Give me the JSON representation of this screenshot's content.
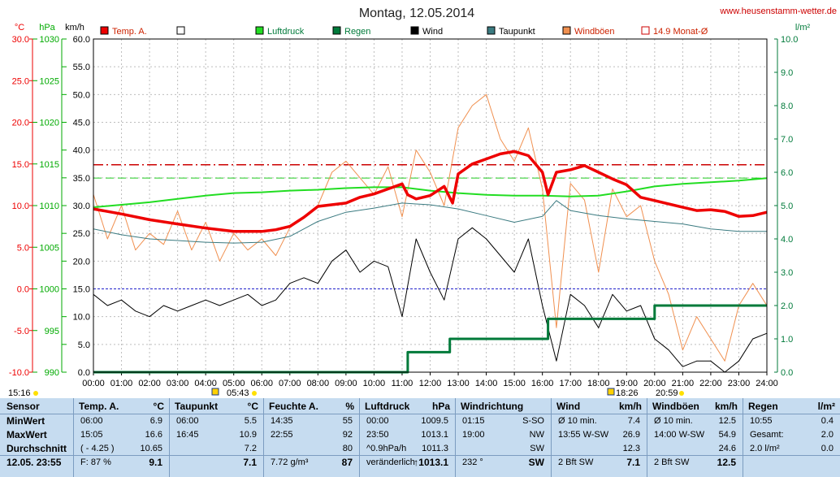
{
  "title": "Montag, 12.05.2014",
  "website": "www.heusenstamm-wetter.de",
  "axis_units": {
    "temp": "°C",
    "press": "hPa",
    "wind": "km/h",
    "rain": "l/m²"
  },
  "colors": {
    "temp": "#ee0000",
    "press": "#22dd22",
    "rain": "#007a3a",
    "wind": "#000000",
    "dew": "#3a7a80",
    "gust": "#f09050",
    "avg": "#cc0000"
  },
  "legend": [
    {
      "label": "Temp. A.",
      "color": "#ee0000"
    },
    {
      "label": "",
      "color": "#ffffff"
    },
    {
      "label": "Luftdruck",
      "color": "#22dd22"
    },
    {
      "label": "Regen",
      "color": "#007a3a"
    },
    {
      "label": "Wind",
      "color": "#000000"
    },
    {
      "label": "Taupunkt",
      "color": "#3a7a80"
    },
    {
      "label": "Windböen",
      "color": "#f09050"
    },
    {
      "label": "14.9 Monat-Ø",
      "color": "#cc0000"
    }
  ],
  "sun": {
    "left_time": "15:16",
    "sunrise": "05:43",
    "sunset": "20:59",
    "moon": "18:26"
  },
  "chart_data": {
    "type": "line",
    "title": "Montag, 12.05.2014",
    "x_ticks": [
      "00:00",
      "01:00",
      "02:00",
      "03:00",
      "04:00",
      "05:00",
      "06:00",
      "07:00",
      "08:00",
      "09:00",
      "10:00",
      "11:00",
      "12:00",
      "13:00",
      "14:00",
      "15:00",
      "16:00",
      "17:00",
      "18:00",
      "19:00",
      "20:00",
      "21:00",
      "22:00",
      "23:00",
      "24:00"
    ],
    "y_axes": {
      "temp_c": {
        "range": [
          -10,
          30
        ],
        "ticks": [
          "-10.0",
          "-5.0",
          "0.0",
          "5.0",
          "10.0",
          "15.0",
          "20.0",
          "25.0",
          "30.0"
        ]
      },
      "pressure_hpa": {
        "range": [
          990,
          1030
        ],
        "ticks": [
          "990",
          "995",
          "1000",
          "1005",
          "1010",
          "1015",
          "1020",
          "1025",
          "1030"
        ]
      },
      "wind_kmh": {
        "range": [
          0,
          60
        ],
        "ticks": [
          "0.0",
          "5.0",
          "10.0",
          "15.0",
          "20.0",
          "25.0",
          "30.0",
          "35.0",
          "40.0",
          "45.0",
          "50.0",
          "55.0",
          "60.0"
        ]
      },
      "rain_lm2": {
        "range": [
          0,
          10
        ],
        "ticks": [
          "0.0",
          "1.0",
          "2.0",
          "3.0",
          "4.0",
          "5.0",
          "6.0",
          "7.0",
          "8.0",
          "9.0",
          "10.0"
        ]
      }
    },
    "reference_lines": {
      "temp_month_avg": 14.9,
      "pressure_ref": 1013.3,
      "temp_zero": 0
    },
    "series": [
      {
        "name": "Temp. A.",
        "axis": "temp_c",
        "x_hours": [
          0,
          1,
          2,
          3,
          4,
          5,
          6,
          6.5,
          7,
          7.5,
          8,
          9,
          9.5,
          10,
          10.5,
          11,
          11.2,
          11.5,
          12,
          12.5,
          12.8,
          13,
          13.5,
          14,
          14.5,
          15,
          15.5,
          16,
          16.2,
          16.5,
          17,
          17.5,
          18,
          18.5,
          19,
          19.5,
          20,
          21,
          21.5,
          22,
          22.5,
          23,
          23.5,
          24
        ],
        "values": [
          9.6,
          9.0,
          8.3,
          7.8,
          7.3,
          6.9,
          6.9,
          7.1,
          7.5,
          8.6,
          9.9,
          10.3,
          11.0,
          11.4,
          12.0,
          12.6,
          11.3,
          10.8,
          11.2,
          12.3,
          10.3,
          13.8,
          15.0,
          15.6,
          16.2,
          16.5,
          16.0,
          14.0,
          11.3,
          14.0,
          14.3,
          14.8,
          14.0,
          13.2,
          12.5,
          11.0,
          10.6,
          9.8,
          9.4,
          9.5,
          9.3,
          8.7,
          8.8,
          9.2
        ]
      },
      {
        "name": "Luftdruck",
        "axis": "pressure_hpa",
        "x_hours": [
          0,
          1,
          2,
          3,
          4,
          5,
          6,
          7,
          8,
          9,
          10,
          11,
          12,
          13,
          14,
          15,
          16,
          17,
          18,
          19,
          20,
          21,
          22,
          23,
          24
        ],
        "values": [
          1009.8,
          1010.1,
          1010.4,
          1010.8,
          1011.2,
          1011.5,
          1011.6,
          1011.8,
          1011.9,
          1012.1,
          1012.2,
          1012.2,
          1011.8,
          1011.5,
          1011.3,
          1011.2,
          1011.2,
          1011.1,
          1011.2,
          1011.7,
          1012.3,
          1012.6,
          1012.8,
          1013.0,
          1013.3
        ]
      },
      {
        "name": "Taupunkt",
        "axis": "temp_c",
        "x_hours": [
          0,
          1,
          2,
          3,
          4,
          5,
          6,
          7,
          8,
          9,
          10,
          11,
          12,
          13,
          14,
          15,
          16,
          16.5,
          17,
          18,
          19,
          20,
          21,
          22,
          23,
          24
        ],
        "values": [
          7.2,
          6.5,
          6.0,
          5.8,
          5.6,
          5.5,
          5.6,
          6.3,
          8.1,
          9.2,
          9.7,
          10.3,
          10.1,
          9.6,
          8.8,
          8.0,
          8.7,
          10.6,
          9.4,
          8.8,
          8.4,
          8.1,
          7.8,
          7.2,
          6.9,
          6.9
        ]
      },
      {
        "name": "Wind",
        "axis": "wind_kmh",
        "x_hours": [
          0,
          0.5,
          1,
          1.5,
          2,
          2.5,
          3,
          3.5,
          4,
          4.5,
          5,
          5.5,
          6,
          6.5,
          7,
          7.5,
          8,
          8.5,
          9,
          9.5,
          10,
          10.5,
          11,
          11.5,
          12,
          12.5,
          13,
          13.5,
          14,
          14.5,
          15,
          15.5,
          16,
          16.5,
          17,
          17.5,
          18,
          18.5,
          19,
          19.5,
          20,
          20.5,
          21,
          21.5,
          22,
          22.5,
          23,
          23.5,
          24
        ],
        "values": [
          14,
          12,
          13,
          11,
          10,
          12,
          11,
          12,
          13,
          12,
          13,
          14,
          12,
          13,
          16,
          17,
          16,
          20,
          22,
          18,
          20,
          19,
          10,
          24,
          18,
          13,
          24,
          26,
          24,
          21,
          18,
          24,
          12,
          2,
          14,
          12,
          8,
          14,
          11,
          12,
          6,
          4,
          1,
          2,
          2,
          0,
          2,
          6,
          7
        ]
      },
      {
        "name": "Windböen",
        "axis": "wind_kmh",
        "x_hours": [
          0,
          0.5,
          1,
          1.5,
          2,
          2.5,
          3,
          3.5,
          4,
          4.5,
          5,
          5.5,
          6,
          6.5,
          7,
          7.5,
          8,
          8.5,
          9,
          9.5,
          10,
          10.5,
          11,
          11.5,
          12,
          12.5,
          13,
          13.5,
          14,
          14.5,
          15,
          15.5,
          16,
          16.5,
          17,
          17.5,
          18,
          18.5,
          19,
          19.5,
          20,
          20.5,
          21,
          21.5,
          22,
          22.5,
          23,
          23.5,
          24
        ],
        "values": [
          32,
          24,
          30,
          22,
          25,
          23,
          29,
          22,
          27,
          20,
          25,
          22,
          24,
          21,
          26,
          28,
          30,
          36,
          38,
          35,
          32,
          37,
          28,
          40,
          36,
          30,
          44,
          48,
          50,
          42,
          38,
          44,
          33,
          8,
          34,
          31,
          18,
          33,
          28,
          30,
          20,
          14,
          4,
          10,
          6,
          2,
          12,
          16,
          12
        ]
      },
      {
        "name": "Regen",
        "axis": "rain_lm2",
        "x_hours": [
          0,
          11,
          11.2,
          12.5,
          12.7,
          16.0,
          16.2,
          19.8,
          20.0,
          24
        ],
        "values": [
          0,
          0,
          0.6,
          0.6,
          1.0,
          1.0,
          1.6,
          1.6,
          2.0,
          2.0
        ]
      }
    ]
  },
  "table": {
    "row_labels": [
      "Sensor",
      "MinWert",
      "MaxWert",
      "Durchschnitt",
      "12.05. 23:55"
    ],
    "columns": [
      {
        "name": "Temp. A.",
        "unit": "°C",
        "rows": [
          [
            "06:00",
            "6.9"
          ],
          [
            "15:05",
            "16.6"
          ],
          [
            "( - 4.25 )",
            "10.65"
          ],
          [
            "F: 87 %",
            "9.1"
          ]
        ]
      },
      {
        "name": "Taupunkt",
        "unit": "°C",
        "rows": [
          [
            "06:00",
            "5.5"
          ],
          [
            "16:45",
            "10.9"
          ],
          [
            "",
            "7.2"
          ],
          [
            "",
            "7.1"
          ]
        ]
      },
      {
        "name": "Feuchte A.",
        "unit": "%",
        "rows": [
          [
            "14:35",
            "55"
          ],
          [
            "22:55",
            "92"
          ],
          [
            "",
            "80"
          ],
          [
            "7.72 g/m³",
            "87"
          ]
        ]
      },
      {
        "name": "Luftdruck",
        "unit": "hPa",
        "rows": [
          [
            "00:00",
            "1009.5"
          ],
          [
            "23:50",
            "1013.1"
          ],
          [
            "^0.9hPa/h",
            "1011.3"
          ],
          [
            "veränderlich",
            "↑1013.1"
          ]
        ]
      },
      {
        "name": "Windrichtung",
        "unit": "",
        "rows": [
          [
            "01:15",
            "S-SO"
          ],
          [
            "19:00",
            "NW"
          ],
          [
            "",
            "SW"
          ],
          [
            "232 °",
            "SW"
          ]
        ]
      },
      {
        "name": "Wind",
        "unit": "km/h",
        "rows": [
          [
            "Ø 10 min.",
            "7.4"
          ],
          [
            "13:55   W-SW",
            "26.9"
          ],
          [
            "",
            "12.3"
          ],
          [
            "2 Bft SW",
            "7.1"
          ]
        ]
      },
      {
        "name": "Windböen",
        "unit": "km/h",
        "rows": [
          [
            "Ø 10 min.",
            "12.5"
          ],
          [
            "14:00   W-SW",
            "54.9"
          ],
          [
            "",
            "24.6"
          ],
          [
            "2 Bft SW",
            "12.5"
          ]
        ]
      },
      {
        "name": "Regen",
        "unit": "l/m²",
        "rows": [
          [
            "10:55",
            "0.4"
          ],
          [
            "Gesamt:",
            "2.0"
          ],
          [
            "2.0 l/m²",
            "0.0"
          ],
          [
            "",
            ""
          ]
        ]
      }
    ]
  }
}
